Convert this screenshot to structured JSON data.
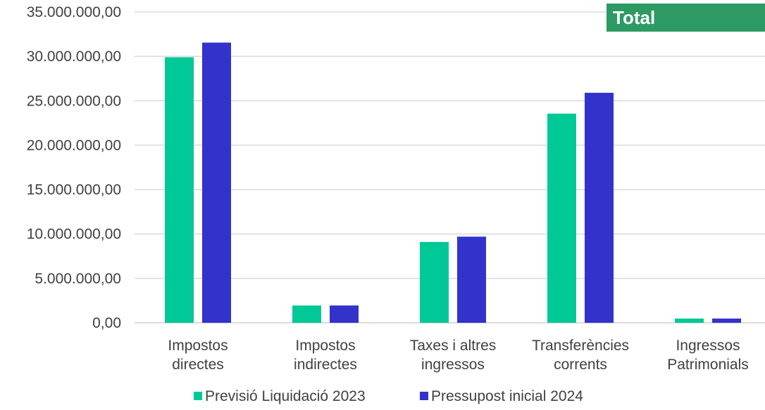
{
  "badge": {
    "label": "Total",
    "color": "#2e9a63"
  },
  "chart_data": {
    "type": "bar",
    "categories": [
      [
        "Impostos",
        "directes"
      ],
      [
        "Impostos",
        "indirectes"
      ],
      [
        "Taxes i altres",
        "ingressos"
      ],
      [
        "Transferències",
        "corrents"
      ],
      [
        "Ingressos",
        "Patrimonials"
      ]
    ],
    "series": [
      {
        "name": "Previsió Liquidació 2023",
        "color": "#00c896",
        "values": [
          29900000,
          1950000,
          9100000,
          23550000,
          480000
        ]
      },
      {
        "name": "Pressupost inicial 2024",
        "color": "#3333cc",
        "values": [
          31550000,
          1950000,
          9700000,
          25900000,
          480000
        ]
      }
    ],
    "y_ticks": [
      0,
      5000000,
      10000000,
      15000000,
      20000000,
      25000000,
      30000000,
      35000000
    ],
    "y_tick_labels": [
      "0,00",
      "5.000.000,00",
      "10.000.000,00",
      "15.000.000,00",
      "20.000.000,00",
      "25.000.000,00",
      "30.000.000,00",
      "35.000.000,00"
    ],
    "ylim": [
      0,
      35000000
    ],
    "grid": true,
    "legend_position": "bottom",
    "title": "",
    "xlabel": "",
    "ylabel": ""
  }
}
